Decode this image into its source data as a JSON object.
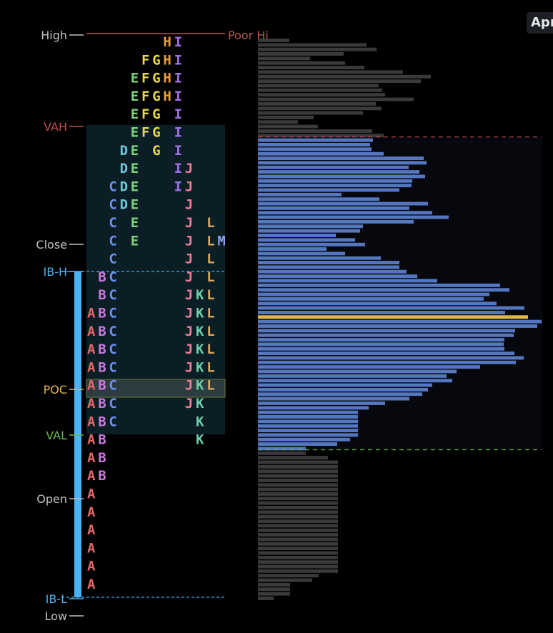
{
  "header": {
    "date_badge": "Apr"
  },
  "colors": {
    "high": "#c0c0c0",
    "low": "#c0c0c0",
    "close": "#c0c0c0",
    "open": "#c0c0c0",
    "vah": "#c0504d",
    "val": "#6bb84f",
    "poc": "#e0b84a",
    "ib": "#4ab3f4",
    "poor_hi": "#b5584f",
    "value_area_bg": "#0b1e26",
    "bar_in_va": "#5577c0",
    "bar_out_va": "#3a3a3c",
    "bar_poc": "#e0b84a"
  },
  "chart_data": {
    "type": "bar",
    "orientation": "horizontal",
    "levels": {
      "high": "High",
      "poor_hi": "Poor Hi",
      "vah": "VAH",
      "close": "Close",
      "ib_high": "IB-H",
      "poc": "POC",
      "val": "VAL",
      "open": "Open",
      "ib_low": "IB-L",
      "low": "Low"
    },
    "tpo_letter_colors": {
      "A": "#e06666",
      "B": "#c87ad8",
      "C": "#6f8ef0",
      "D": "#6fc6d8",
      "E": "#7ed07a",
      "F": "#e8d84a",
      "G": "#e8d84a",
      "H": "#e8a040",
      "I": "#a070e8",
      "J": "#ee7c96",
      "K": "#6fd0a8",
      "L": "#d8a860",
      "M": "#8aa0e8"
    },
    "tpo_rows": [
      "       HI",
      "     FGHI",
      "    EFGHI",
      "    EFGHI",
      "    EFG I",
      "    EFG I",
      "   DE G I",
      "   DE   IJ",
      "  CDE   IJ",
      "  CDE    J",
      "  C E    J L",
      "  C E    J LM",
      "  C      J L",
      " BC      J L",
      " BC      JKL",
      "ABC      JKL",
      "ABC      JKL",
      "ABC      JKL",
      "ABC      JKL",
      "ABC      JKL",
      "ABC      JK",
      "ABC       K",
      "AB        K",
      "AB",
      "AB",
      "A",
      "A",
      "A",
      "A",
      "A",
      "A"
    ],
    "volume_profile": [
      44,
      152,
      166,
      120,
      73,
      122,
      149,
      203,
      242,
      228,
      169,
      174,
      178,
      218,
      165,
      173,
      147,
      78,
      56,
      84,
      160,
      176,
      161,
      157,
      159,
      176,
      232,
      236,
      211,
      226,
      234,
      216,
      215,
      198,
      117,
      170,
      238,
      212,
      244,
      267,
      218,
      147,
      143,
      109,
      136,
      150,
      96,
      122,
      172,
      198,
      198,
      208,
      223,
      251,
      339,
      352,
      324,
      316,
      334,
      373,
      346,
      378,
      397,
      391,
      360,
      358,
      345,
      344,
      345,
      359,
      372,
      361,
      311,
      278,
      264,
      272,
      244,
      238,
      230,
      212,
      178,
      155,
      140,
      140,
      140,
      140,
      140,
      140,
      129,
      111,
      67,
      67,
      98,
      112,
      112,
      112,
      112,
      112,
      112,
      112,
      112,
      112,
      112,
      112,
      112,
      112,
      112,
      112,
      112,
      112,
      112,
      112,
      112,
      112,
      112,
      112,
      112,
      112,
      85,
      76,
      45,
      45,
      45,
      22
    ],
    "poc_index": 61,
    "value_area_rows": [
      22,
      90
    ]
  }
}
